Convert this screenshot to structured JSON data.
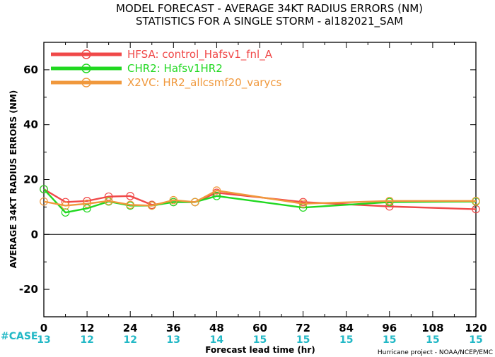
{
  "chart_data": {
    "type": "line",
    "title": [
      "MODEL FORECAST - AVERAGE 34KT RADIUS ERRORS (NM)",
      "STATISTICS FOR A SINGLE STORM - al182021_SAM"
    ],
    "xlabel": "Forecast lead time (hr)",
    "ylabel": "AVERAGE 34KT RADIUS ERRORS (NM)",
    "xlim": [
      0,
      120
    ],
    "ylim": [
      -30,
      70
    ],
    "xticks": [
      0,
      12,
      24,
      36,
      48,
      60,
      72,
      84,
      96,
      108,
      120
    ],
    "yticks": [
      -20,
      0,
      20,
      40,
      60
    ],
    "zero_line": true,
    "grid": false,
    "legend_position": "top-left",
    "case_label": "#CASE",
    "case_counts": [
      {
        "x": 0,
        "n": "13"
      },
      {
        "x": 12,
        "n": "12"
      },
      {
        "x": 24,
        "n": "12"
      },
      {
        "x": 36,
        "n": "13"
      },
      {
        "x": 48,
        "n": "14"
      },
      {
        "x": 60,
        "n": "15"
      },
      {
        "x": 72,
        "n": "15"
      },
      {
        "x": 84,
        "n": "15"
      },
      {
        "x": 96,
        "n": "15"
      },
      {
        "x": 108,
        "n": "15"
      },
      {
        "x": 120,
        "n": "15"
      }
    ],
    "credit": "Hurricane project - NOAA/NCEP/EMC",
    "series": [
      {
        "name": "HFSA: control_Hafsv1_fnl_A",
        "color": "#f04848",
        "x": [
          0,
          6,
          12,
          18,
          24,
          30,
          36,
          42,
          48,
          72,
          96,
          120
        ],
        "y": [
          16.5,
          11.8,
          12.2,
          13.8,
          14.0,
          10.8,
          11.8,
          11.8,
          15.2,
          11.8,
          10.2,
          9.2
        ],
        "markers_at": [
          0,
          6,
          12,
          18,
          24,
          30,
          36,
          42,
          48,
          72,
          96,
          120
        ]
      },
      {
        "name": "CHR2: Hafsv1HR2",
        "color": "#20d820",
        "x": [
          0,
          6,
          12,
          18,
          24,
          30,
          36,
          42,
          48,
          72,
          96,
          120
        ],
        "y": [
          16.5,
          8.0,
          9.5,
          12.0,
          10.5,
          10.5,
          11.8,
          11.8,
          14.0,
          9.8,
          11.8,
          12.0
        ],
        "markers_at": [
          0,
          6,
          12,
          18,
          24,
          30,
          36,
          42,
          48,
          72,
          96,
          120
        ]
      },
      {
        "name": "X2VC: HR2_allcsmf20_varycs",
        "color": "#f0983c",
        "x": [
          0,
          6,
          12,
          18,
          24,
          30,
          36,
          42,
          48,
          72,
          96,
          120
        ],
        "y": [
          12.0,
          10.5,
          11.2,
          12.2,
          10.8,
          10.5,
          12.5,
          11.8,
          16.0,
          11.2,
          12.2,
          12.2
        ],
        "markers_at": [
          0,
          6,
          12,
          18,
          24,
          30,
          36,
          42,
          48,
          72,
          96,
          120
        ]
      }
    ]
  }
}
